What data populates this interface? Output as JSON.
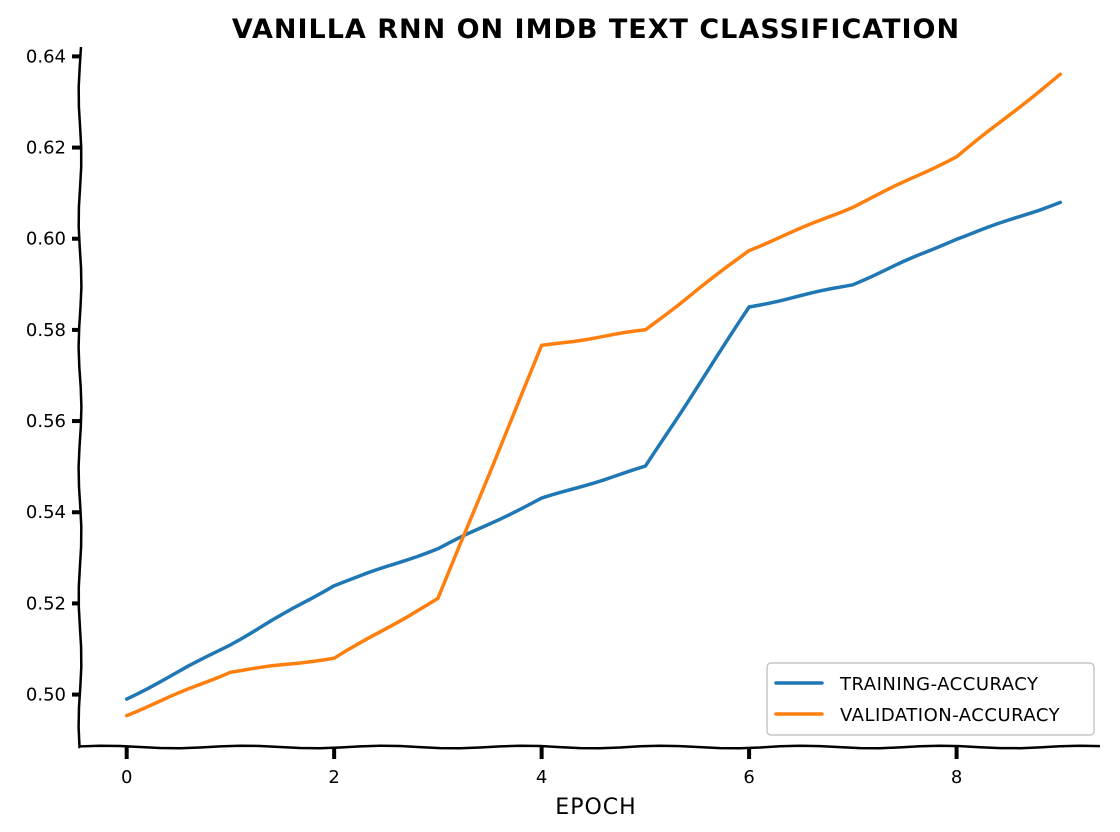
{
  "chart_data": {
    "type": "line",
    "title": "VANILLA RNN ON IMDB TEXT CLASSIFICATION",
    "xlabel": "EPOCH",
    "ylabel": "",
    "xlim": [
      -0.45,
      9.45
    ],
    "ylim": [
      0.4885,
      0.6425
    ],
    "x_ticks": [
      0,
      2,
      4,
      6,
      8
    ],
    "y_ticks": [
      0.5,
      0.52,
      0.54,
      0.56,
      0.58,
      0.6,
      0.62,
      0.64
    ],
    "y_tick_labels": [
      "0.50",
      "0.52",
      "0.54",
      "0.56",
      "0.58",
      "0.60",
      "0.62",
      "0.64"
    ],
    "grid": false,
    "legend_position": "bottom-right",
    "series": [
      {
        "name": "TRAINING-ACCURACY",
        "color": "#1f77b4",
        "x": [
          0,
          1,
          2,
          3,
          4,
          5,
          6,
          7,
          8,
          9
        ],
        "values": [
          0.499,
          0.511,
          0.524,
          0.532,
          0.543,
          0.55,
          0.585,
          0.59,
          0.6,
          0.608
        ]
      },
      {
        "name": "VALIDATION-ACCURACY",
        "color": "#ff7f0e",
        "x": [
          0,
          1,
          2,
          3,
          4,
          5,
          6,
          7,
          8,
          9
        ],
        "values": [
          0.4955,
          0.505,
          0.508,
          0.521,
          0.5765,
          0.58,
          0.5975,
          0.607,
          0.618,
          0.636
        ]
      }
    ]
  }
}
